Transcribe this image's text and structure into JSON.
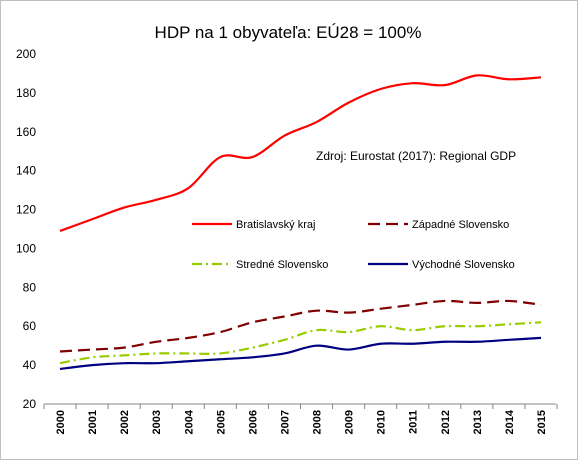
{
  "chart_data": {
    "type": "line",
    "title": "HDP na 1 obyvateľa: EÚ28 = 100%",
    "annotation": "Zdroj: Eurostat (2017): Regional GDP",
    "xlabel": "",
    "ylabel": "",
    "ylim": [
      20,
      200
    ],
    "yticks": [
      20,
      40,
      60,
      80,
      100,
      120,
      140,
      160,
      180,
      200
    ],
    "grid": false,
    "legend_position": "center",
    "x": [
      "2000",
      "2001",
      "2002",
      "2003",
      "2004",
      "2005",
      "2006",
      "2007",
      "2008",
      "2009",
      "2010",
      "2011",
      "2012",
      "2013",
      "2014",
      "2015"
    ],
    "series": [
      {
        "name": "Bratislavský kraj",
        "color": "#ff0000",
        "dash": "solid",
        "values": [
          109,
          115,
          121,
          125,
          131,
          147,
          147,
          158,
          165,
          175,
          182,
          185,
          184,
          189,
          187,
          188
        ]
      },
      {
        "name": "Západné Slovensko",
        "color": "#7f0000",
        "dash": "dashed",
        "values": [
          47,
          48,
          49,
          52,
          54,
          57,
          62,
          65,
          68,
          67,
          69,
          71,
          73,
          72,
          73,
          71
        ]
      },
      {
        "name": "Stredné Slovensko",
        "color": "#99cc00",
        "dash": "dashdot",
        "values": [
          41,
          44,
          45,
          46,
          46,
          46,
          49,
          53,
          58,
          57,
          60,
          58,
          60,
          60,
          61,
          62
        ]
      },
      {
        "name": "Východné Slovensko",
        "color": "#000080",
        "dash": "solid",
        "values": [
          38,
          40,
          41,
          41,
          42,
          43,
          44,
          46,
          50,
          48,
          51,
          51,
          52,
          52,
          53,
          54
        ]
      }
    ]
  }
}
